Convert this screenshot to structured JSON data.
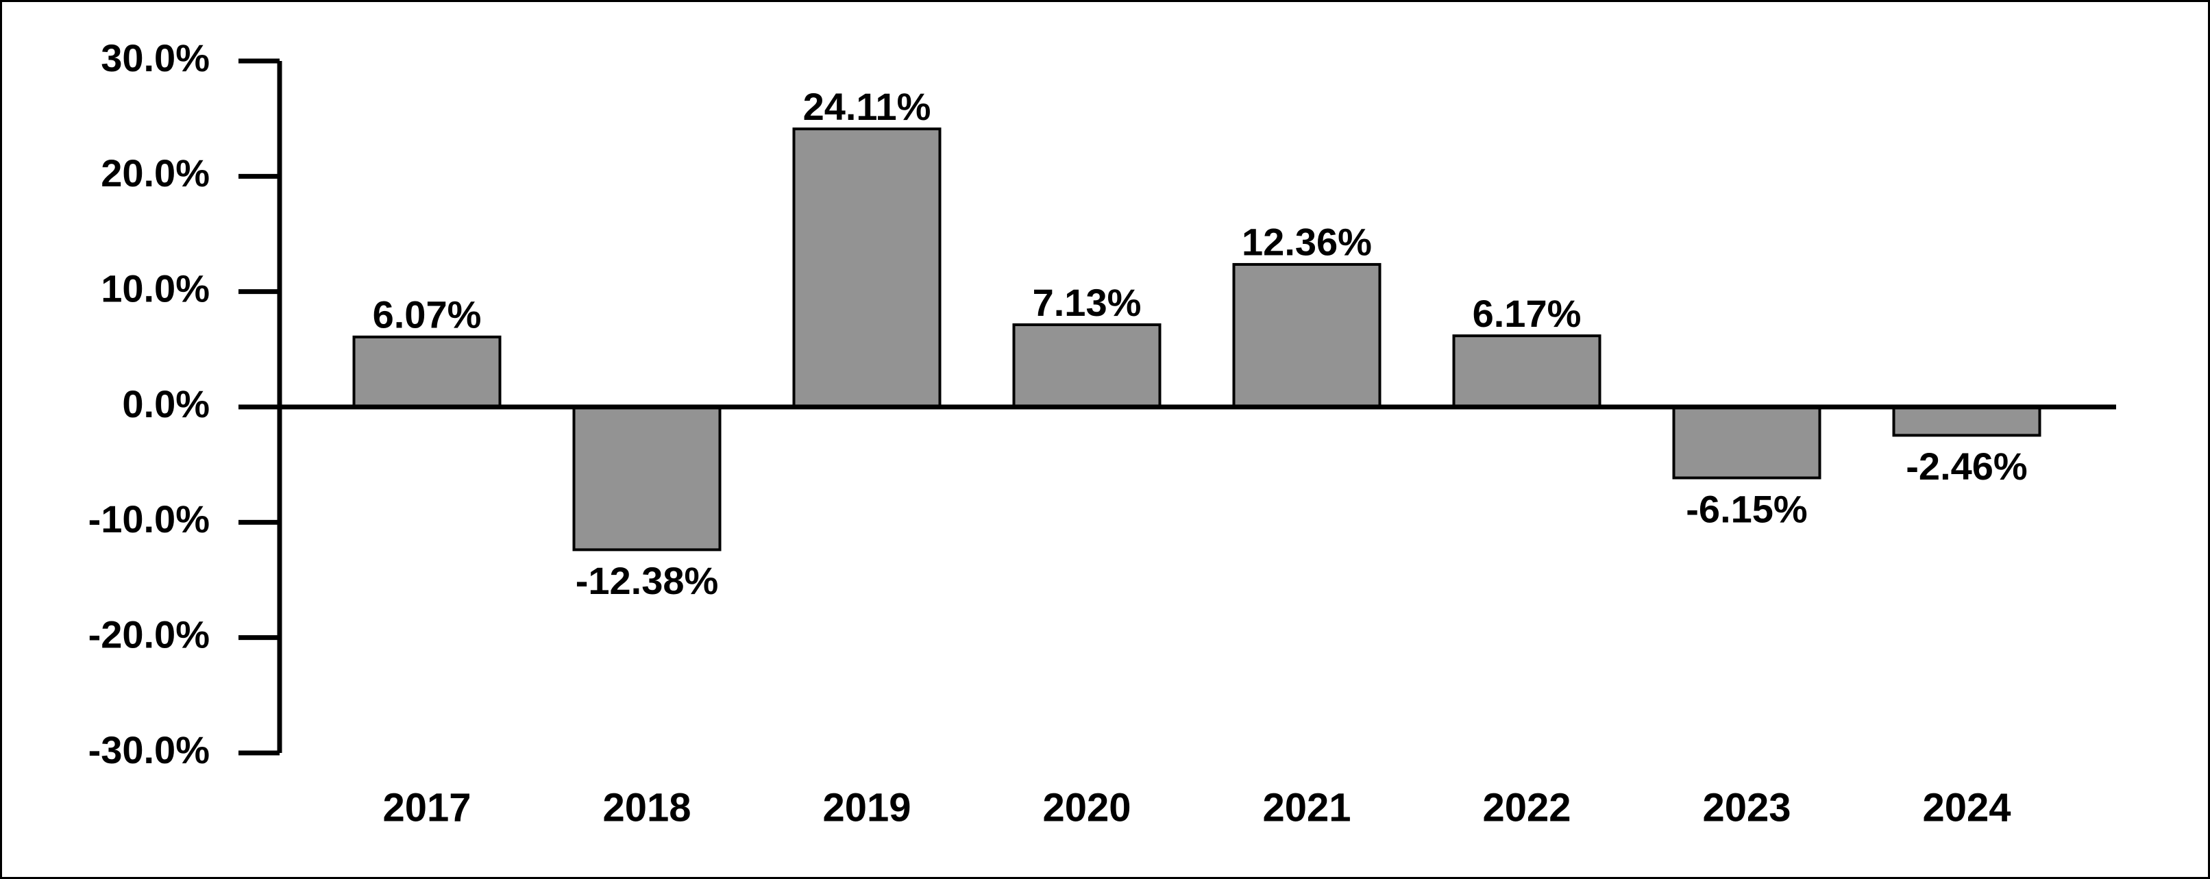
{
  "chart_data": {
    "type": "bar",
    "title": "",
    "xlabel": "",
    "ylabel": "",
    "categories": [
      "2017",
      "2018",
      "2019",
      "2020",
      "2021",
      "2022",
      "2023",
      "2024"
    ],
    "values": [
      6.07,
      -12.38,
      24.11,
      7.13,
      12.36,
      6.17,
      -6.15,
      -2.46
    ],
    "value_labels": [
      "6.07%",
      "-12.38%",
      "24.11%",
      "7.13%",
      "12.36%",
      "6.17%",
      "-6.15%",
      "-2.46%"
    ],
    "ylim": [
      -30,
      30
    ],
    "yticks": [
      30,
      20,
      10,
      0,
      -10,
      -20,
      -30
    ],
    "ytick_labels": [
      "30.0%",
      "20.0%",
      "10.0%",
      "0.0%",
      "-10.0%",
      "-20.0%",
      "-30.0%"
    ],
    "grid": false,
    "legend": "none",
    "colors": {
      "bar_fill": "#939393",
      "bar_stroke": "#000000",
      "axis": "#000000",
      "text": "#000000",
      "background": "#ffffff"
    }
  }
}
